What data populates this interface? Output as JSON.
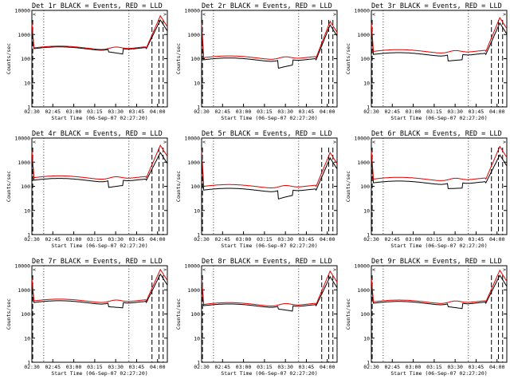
{
  "chart_data": {
    "type": "line",
    "layout": "3x3 grid",
    "legend_note": "BLACK = Events, RED = LLD",
    "ylabel": "Counts/sec",
    "xlabel": "Start Time (06-Sep-07 02:27:20)",
    "x_tick_labels": [
      "02:30",
      "02:45",
      "03:00",
      "03:15",
      "03:30",
      "03:45",
      "04:00"
    ],
    "x_tick_minutes": [
      0,
      15,
      30,
      45,
      60,
      75,
      90
    ],
    "xlim_minutes": [
      0,
      97
    ],
    "y_scale": "log",
    "ylim": [
      1,
      10000
    ],
    "y_tick_labels": [
      "1",
      "10",
      "100",
      "1000",
      "10000"
    ],
    "y_tick_values": [
      1,
      10,
      100,
      1000,
      10000
    ],
    "dotted_vertical_lines_minutes": [
      8.5,
      69.5
    ],
    "corner_markers": [
      "<",
      ">"
    ],
    "panels": [
      {
        "title": "Det 1r BLACK = Events, RED = LLD",
        "lld_base": 280,
        "evt_base": 260,
        "spike_lld": 6000,
        "spike_evt": 4000,
        "dip_evt": 190,
        "black_dip_minutes": [
          55,
          65
        ]
      },
      {
        "title": "Det 2r BLACK = Events, RED = LLD",
        "lld_base": 110,
        "evt_base": 90,
        "spike_lld": 3500,
        "spike_evt": 2500,
        "dip_evt": 40,
        "black_dip_minutes": [
          55,
          65
        ]
      },
      {
        "title": "Det 3r BLACK = Events, RED = LLD",
        "lld_base": 200,
        "evt_base": 150,
        "spike_lld": 5000,
        "spike_evt": 3000,
        "dip_evt": 80,
        "black_dip_minutes": [
          55,
          65
        ]
      },
      {
        "title": "Det 4r BLACK = Events, RED = LLD",
        "lld_base": 230,
        "evt_base": 180,
        "spike_lld": 5000,
        "spike_evt": 2500,
        "dip_evt": 90,
        "black_dip_minutes": [
          55,
          65
        ]
      },
      {
        "title": "Det 5r BLACK = Events, RED = LLD",
        "lld_base": 100,
        "evt_base": 70,
        "spike_lld": 2500,
        "spike_evt": 1500,
        "dip_evt": 30,
        "black_dip_minutes": [
          55,
          65
        ]
      },
      {
        "title": "Det 6r BLACK = Events, RED = LLD",
        "lld_base": 200,
        "evt_base": 140,
        "spike_lld": 4500,
        "spike_evt": 2000,
        "dip_evt": 80,
        "black_dip_minutes": [
          55,
          65
        ]
      },
      {
        "title": "Det 7r BLACK = Events, RED = LLD",
        "lld_base": 350,
        "evt_base": 300,
        "spike_lld": 7000,
        "spike_evt": 4500,
        "dip_evt": 200,
        "black_dip_minutes": [
          55,
          65
        ]
      },
      {
        "title": "Det 8r BLACK = Events, RED = LLD",
        "lld_base": 250,
        "evt_base": 220,
        "spike_lld": 6000,
        "spike_evt": 3500,
        "dip_evt": 160,
        "black_dip_minutes": [
          55,
          65
        ]
      },
      {
        "title": "Det 9r BLACK = Events, RED = LLD",
        "lld_base": 320,
        "evt_base": 280,
        "spike_lld": 6500,
        "spike_evt": 4000,
        "dip_evt": 200,
        "black_dip_minutes": [
          55,
          65
        ]
      }
    ]
  },
  "colors": {
    "events": "#000000",
    "lld": "#e00000",
    "axes": "#000000"
  }
}
